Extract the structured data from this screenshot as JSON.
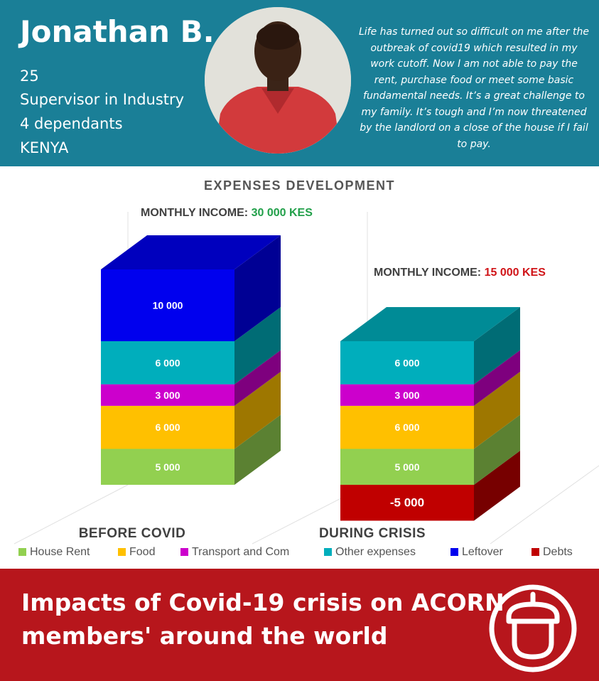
{
  "profile": {
    "name": "Jonathan B.",
    "age": "25",
    "job": "Supervisor in Industry",
    "dependants": "4 dependants",
    "country": "KENYA",
    "quote": "Life has turned out so difficult on me after the outbreak of covid19 which resulted in my work cutoff. Now I am not able to pay the rent, purchase food or meet some basic fundamental needs. It’s a great challenge to my family. It’s tough and I’m now threatened by the landlord on a close of the house if I fail to pay."
  },
  "chart_data": {
    "type": "bar",
    "stacked": true,
    "title": "EXPENSES DEVELOPMENT",
    "categories": [
      "BEFORE COVID",
      "DURING CRISIS"
    ],
    "income_labels": [
      {
        "label": "MONTHLY INCOME:",
        "value": "30 000 KES",
        "color": "#22a04a"
      },
      {
        "label": "MONTHLY INCOME:",
        "value": "15 000 KES",
        "color": "#d01418"
      }
    ],
    "series": [
      {
        "name": "House Rent",
        "color": "#92d050",
        "values": [
          5000,
          5000
        ],
        "labels": [
          "5 000",
          "5 000"
        ]
      },
      {
        "name": "Food",
        "color": "#ffc000",
        "values": [
          6000,
          6000
        ],
        "labels": [
          "6 000",
          "6 000"
        ]
      },
      {
        "name": "Transport and Com",
        "color": "#cc00cc",
        "values": [
          3000,
          3000
        ],
        "labels": [
          "3 000",
          "3 000"
        ]
      },
      {
        "name": "Other expenses",
        "color": "#00aebc",
        "values": [
          6000,
          6000
        ],
        "labels": [
          "6 000",
          "6 000"
        ]
      },
      {
        "name": "Leftover",
        "color": "#0000ee",
        "values": [
          10000,
          0
        ],
        "labels": [
          "10 000",
          ""
        ]
      },
      {
        "name": "Debts",
        "color": "#c00000",
        "values": [
          0,
          -5000
        ],
        "labels": [
          "",
          "-5 000"
        ]
      }
    ],
    "legend": "bottom"
  },
  "footer": {
    "line1": "Impacts of Covid-19 crisis on ACORN",
    "line2": "members' around the world"
  }
}
